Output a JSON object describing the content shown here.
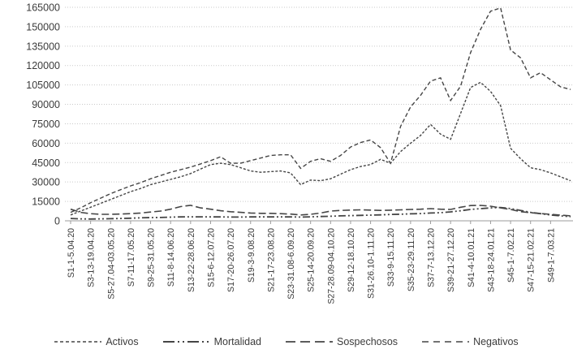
{
  "chart_data": {
    "type": "line",
    "title": "",
    "xlabel": "",
    "ylabel": "",
    "grid": "horizontal-dotted",
    "legend_position": "bottom",
    "line_color": "#454545",
    "y_axis": {
      "min": 0,
      "max": 165000,
      "step": 15000,
      "tick_labels": [
        "0",
        "15000",
        "30000",
        "45000",
        "60000",
        "75000",
        "90000",
        "105000",
        "120000",
        "135000",
        "150000",
        "165000"
      ]
    },
    "x_axis": {
      "weeks_count": 51,
      "labels_every": 2,
      "tick_labels": [
        "S1-1-5.04.20",
        "S3-13-19.04.20",
        "S5-27.04-03.05.20",
        "S7-11-17.05.20",
        "S9-25-31.05.20",
        "S11-8-14.06.20",
        "S13-22-28.06.20",
        "S15-6-12.07.20",
        "S17-20-26.07.20",
        "S19-3-9.08.20",
        "S21-17-23.08.20",
        "S23-31.08-6.09.20",
        "S25-14-20.09.20",
        "S27-28.09-04.10.20",
        "S29-12-18.10.20",
        "S31-26.10-1.11.20",
        "S33-9-15.11.20",
        "S35-23-29.11.20",
        "S37-7-13.12.20",
        "S39-21-27.12.20",
        "S41-4-10.01.21",
        "S43-18-24.01.21",
        "S45-1-7.02.21",
        "S47-15-21.02.21",
        "S49-1-7.03.21"
      ]
    },
    "series": [
      {
        "name": "Activos",
        "dash": "3,2",
        "legend_dash": "4,3",
        "width": 1.4,
        "values": [
          4500,
          7500,
          10500,
          13500,
          16500,
          19500,
          22500,
          25000,
          28000,
          30000,
          32000,
          34000,
          36500,
          40000,
          43500,
          44500,
          43500,
          41000,
          38500,
          37500,
          38000,
          38500,
          37000,
          28000,
          31500,
          31000,
          32500,
          36000,
          39500,
          42000,
          43500,
          47500,
          44500,
          53500,
          60000,
          66000,
          74500,
          67000,
          63000,
          83000,
          103000,
          107000,
          100000,
          89000,
          56000,
          48000,
          41000,
          39500,
          37000,
          34000,
          31000
        ]
      },
      {
        "name": "Mortalidad",
        "dash": "9,3,2,3,2,3",
        "legend_dash": "14,4,2,4,2,4",
        "width": 1.8,
        "values": [
          1800,
          1500,
          1400,
          1500,
          1600,
          1800,
          2000,
          2300,
          2500,
          2600,
          2800,
          3000,
          3100,
          3100,
          3000,
          3000,
          2900,
          2900,
          3000,
          3000,
          3000,
          3000,
          3000,
          2900,
          3100,
          3300,
          3500,
          3800,
          4000,
          4200,
          4400,
          4600,
          4900,
          5100,
          5400,
          5600,
          6000,
          6300,
          6900,
          7800,
          8800,
          9400,
          10000,
          10300,
          9500,
          8000,
          6500,
          5500,
          4500,
          3800,
          3200
        ]
      },
      {
        "name": "Sospechosos",
        "dash": "9,4",
        "legend_dash": "12,6",
        "width": 1.6,
        "values": [
          9000,
          6500,
          5500,
          5000,
          5000,
          5300,
          5500,
          6000,
          6800,
          7500,
          9000,
          11000,
          12000,
          10000,
          9000,
          7800,
          7000,
          6500,
          6000,
          5800,
          5800,
          5500,
          5200,
          4500,
          5000,
          6000,
          7500,
          8000,
          8300,
          8500,
          8300,
          8000,
          8200,
          8500,
          8800,
          9000,
          9400,
          9000,
          8800,
          10500,
          11800,
          11900,
          11300,
          10000,
          8800,
          7000,
          6300,
          5600,
          5000,
          4400,
          3800
        ]
      },
      {
        "name": "Negativos",
        "dash": "5,3",
        "legend_dash": "8,6",
        "width": 1.4,
        "values": [
          6500,
          10000,
          14000,
          17500,
          21000,
          24000,
          27000,
          29500,
          32500,
          35000,
          37500,
          39500,
          41500,
          44000,
          46500,
          49500,
          44500,
          44500,
          46500,
          48500,
          50500,
          51000,
          51000,
          40500,
          46000,
          48000,
          46000,
          50500,
          57000,
          60500,
          62500,
          56500,
          44500,
          73000,
          88000,
          97000,
          108000,
          110500,
          93000,
          104000,
          130000,
          148000,
          162000,
          164500,
          132000,
          126000,
          110500,
          114500,
          109000,
          103500,
          101500
        ]
      }
    ],
    "colors": {
      "grid": "#c9c9c9",
      "axis": "#9b9b9b",
      "text": "#3b3b3b"
    }
  }
}
